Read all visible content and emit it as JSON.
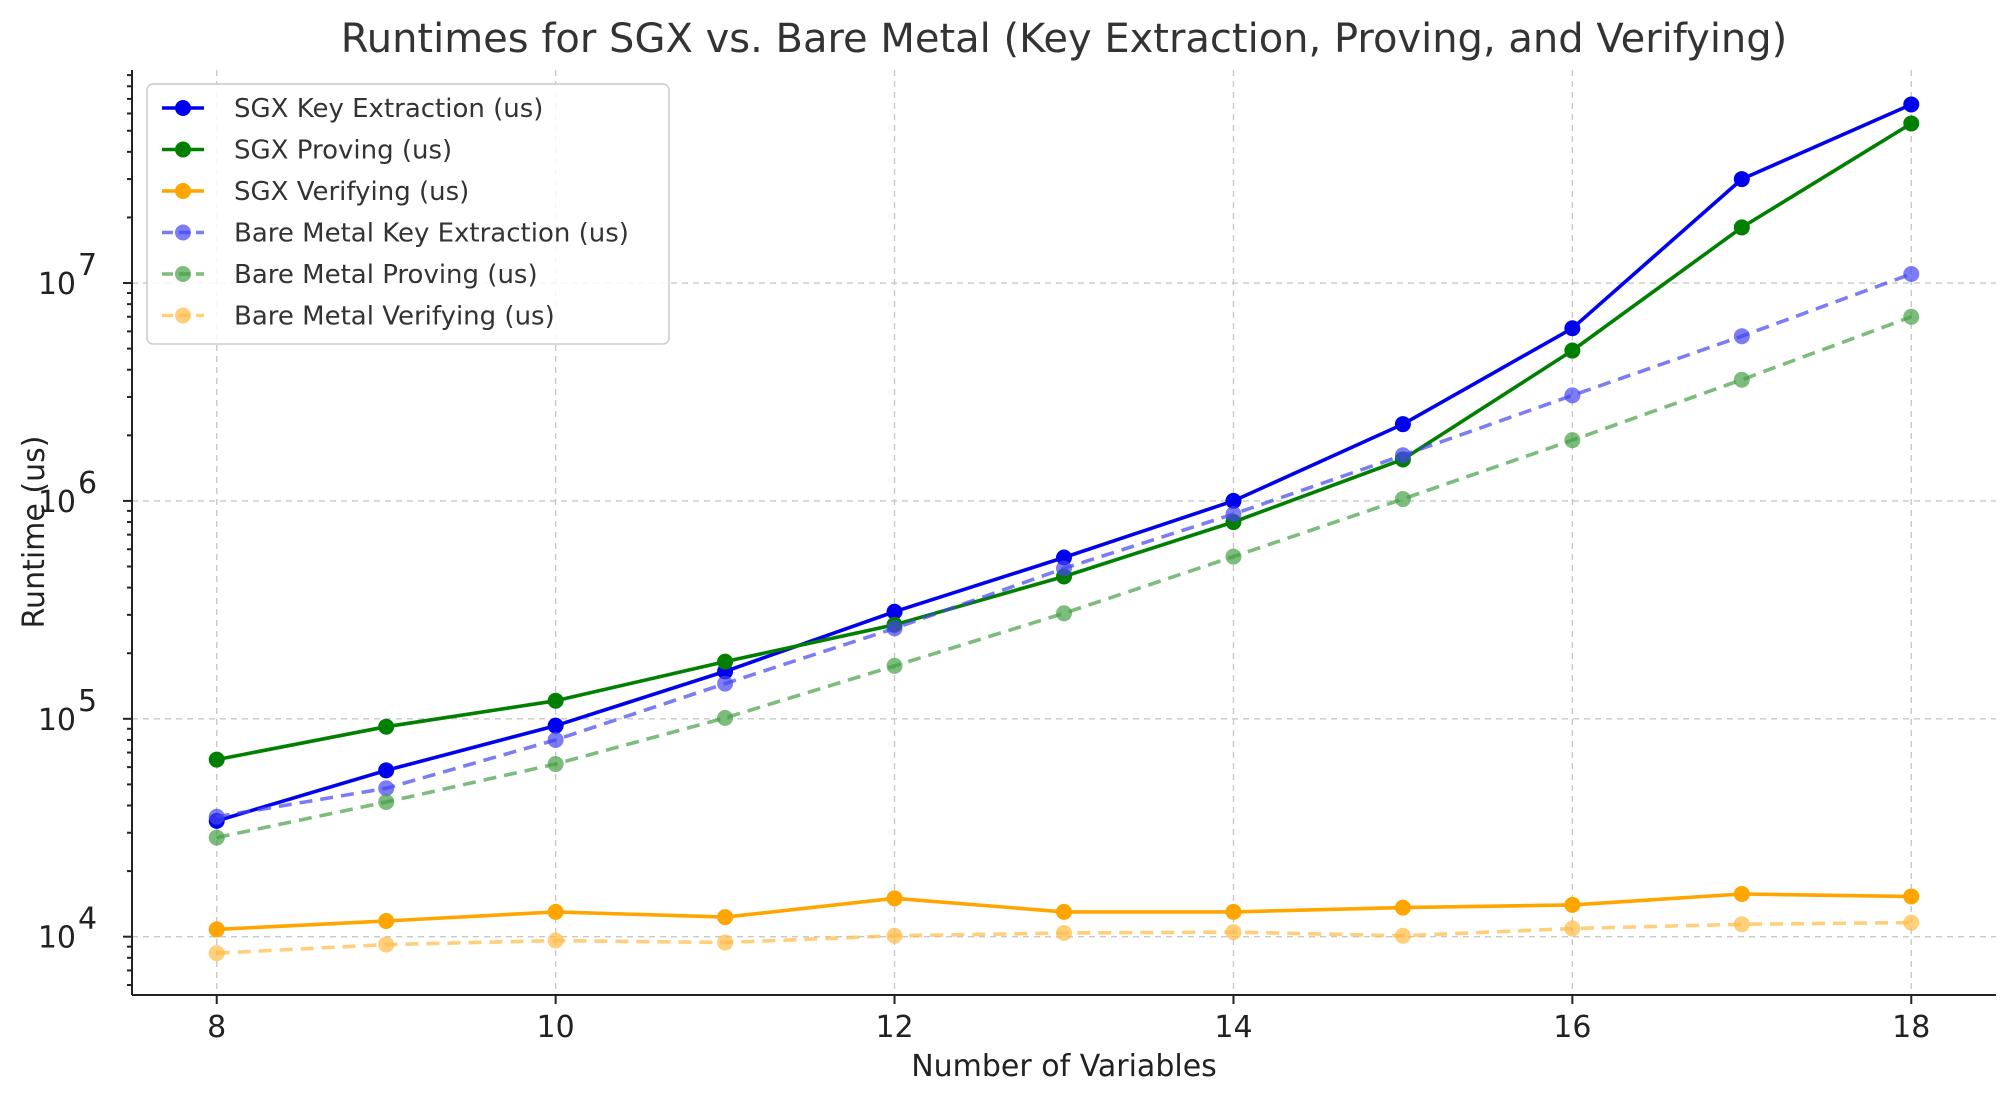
{
  "chart_data": {
    "type": "line",
    "title": "Runtimes for SGX vs. Bare Metal (Key Extraction, Proving, and Verifying)",
    "xlabel": "Number of Variables",
    "ylabel": "Runtime (us)",
    "x": [
      8,
      9,
      10,
      11,
      12,
      13,
      14,
      15,
      16,
      17,
      18
    ],
    "xlim": [
      7.5,
      18.5
    ],
    "ylim": [
      5400,
      95000000
    ],
    "yscale": "log",
    "xticks": [
      8,
      10,
      12,
      14,
      16,
      18
    ],
    "yticks": [
      {
        "base": "10",
        "exp": "4",
        "value": 10000
      },
      {
        "base": "10",
        "exp": "5",
        "value": 100000
      },
      {
        "base": "10",
        "exp": "6",
        "value": 1000000
      },
      {
        "base": "10",
        "exp": "7",
        "value": 10000000
      }
    ],
    "grid": true,
    "legend_position": "top-left",
    "series": [
      {
        "name": "SGX Key Extraction (us)",
        "color": "#0000ee",
        "style": "solid",
        "values": [
          34000,
          58000,
          93000,
          165000,
          310000,
          550000,
          1000000,
          2250000,
          6200000,
          30000000,
          66000000
        ]
      },
      {
        "name": "SGX Proving (us)",
        "color": "#007f00",
        "style": "solid",
        "values": [
          65000,
          92000,
          121000,
          183000,
          270000,
          450000,
          800000,
          1550000,
          4900000,
          18000000,
          54000000
        ]
      },
      {
        "name": "SGX Verifying (us)",
        "color": "#ffa500",
        "style": "solid",
        "values": [
          10800,
          11800,
          13000,
          12300,
          15000,
          13000,
          13000,
          13600,
          14000,
          15700,
          15300
        ]
      },
      {
        "name": "Bare Metal Key Extraction (us)",
        "color": "#4444f0",
        "style": "dashed",
        "values": [
          35500,
          48000,
          80000,
          145000,
          260000,
          490000,
          870000,
          1620000,
          3050000,
          5700000,
          11000000
        ]
      },
      {
        "name": "Bare Metal Proving (us)",
        "color": "#44a044",
        "style": "dashed",
        "values": [
          28500,
          41500,
          62000,
          101000,
          175000,
          305000,
          555000,
          1020000,
          1900000,
          3600000,
          7000000
        ]
      },
      {
        "name": "Bare Metal Verifying (us)",
        "color": "#ffbb44",
        "style": "dashed",
        "values": [
          8400,
          9200,
          9600,
          9400,
          10100,
          10400,
          10500,
          10100,
          10900,
          11400,
          11600
        ]
      }
    ]
  }
}
